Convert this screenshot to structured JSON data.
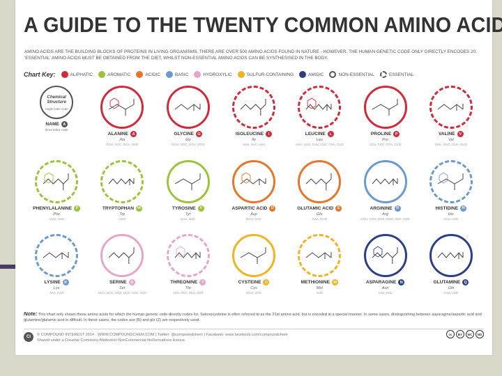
{
  "header": {
    "title": "A GUIDE TO THE TWENTY COMMON AMINO ACIDS",
    "intro": "AMINO ACIDS ARE THE BUILDING BLOCKS OF PROTEINS IN LIVING ORGANISMS. THERE ARE OVER 500 AMINO ACIDS FOUND IN NATURE - HOWEVER, THE HUMAN GENETIC CODE ONLY DIRECTLY ENCODES 20. 'ESSENTIAL' AMINO ACIDS MUST BE OBTAINED FROM THE DIET, WHILST NON-ESSENTIAL AMINO ACIDS CAN BE SYNTHESISED IN THE BODY."
  },
  "chart_key": {
    "label": "Chart Key:",
    "items": [
      {
        "label": "ALIPHATIC",
        "color": "#d12a3a"
      },
      {
        "label": "AROMATIC",
        "color": "#9bc43c"
      },
      {
        "label": "ACIDIC",
        "color": "#e8752a"
      },
      {
        "label": "BASIC",
        "color": "#6b9ad1"
      },
      {
        "label": "HYDROXYLIC",
        "color": "#e7a5c8"
      },
      {
        "label": "SULFUR-CONTAINING",
        "color": "#f0b323"
      },
      {
        "label": "AMIDIC",
        "color": "#2c3e86"
      },
      {
        "label": "NON-ESSENTIAL",
        "color": "#555555"
      },
      {
        "label": "ESSENTIAL",
        "color": "#555555"
      }
    ]
  },
  "legend": {
    "chem": "Chemical Structure",
    "slc": "single letter code",
    "name": "NAME",
    "badge": "A",
    "three_letter": "three letter code"
  },
  "amino_acids": [
    {
      "name": "ALANINE",
      "letter": "A",
      "abbr": "Ala",
      "codons": "GCU, GCC, GCA, GCG",
      "color": "#d12a3a"
    },
    {
      "name": "GLYCINE",
      "letter": "G",
      "abbr": "Gly",
      "codons": "GGU, GGC, GGA, GGG",
      "color": "#d12a3a"
    },
    {
      "name": "ISOLEUCINE",
      "letter": "I",
      "abbr": "Ile",
      "codons": "AUU, AUC, AUA",
      "color": "#d12a3a"
    },
    {
      "name": "LEUCINE",
      "letter": "L",
      "abbr": "Leu",
      "codons": "UUA, UUG, CUU, CUC, CUA, CUG",
      "color": "#d12a3a"
    },
    {
      "name": "PROLINE",
      "letter": "P",
      "abbr": "Pro",
      "codons": "CCU, CCC, CCA, CCG",
      "color": "#d12a3a"
    },
    {
      "name": "VALINE",
      "letter": "V",
      "abbr": "Val",
      "codons": "GUU, GUC, GUA, GUG",
      "color": "#d12a3a"
    },
    {
      "name": "PHENYLALANINE",
      "letter": "F",
      "abbr": "Phe",
      "codons": "UUU, UUC",
      "color": "#9bc43c"
    },
    {
      "name": "TRYPTOPHAN",
      "letter": "W",
      "abbr": "Trp",
      "codons": "UGG",
      "color": "#9bc43c"
    },
    {
      "name": "TYROSINE",
      "letter": "Y",
      "abbr": "Tyr",
      "codons": "UAU, UAC",
      "color": "#9bc43c"
    },
    {
      "name": "ASPARTIC ACID",
      "letter": "D",
      "abbr": "Asp",
      "codons": "GAU, GAC",
      "color": "#e8752a"
    },
    {
      "name": "GLUTAMIC ACID",
      "letter": "E",
      "abbr": "Glu",
      "codons": "GAA, GAG",
      "color": "#e8752a"
    },
    {
      "name": "ARGININE",
      "letter": "R",
      "abbr": "Arg",
      "codons": "CGU, CGC, CGA, CGG, AGA, AGG",
      "color": "#6b9ad1"
    },
    {
      "name": "HISTIDINE",
      "letter": "H",
      "abbr": "His",
      "codons": "CAU, CAC",
      "color": "#6b9ad1"
    },
    {
      "name": "LYSINE",
      "letter": "K",
      "abbr": "Lys",
      "codons": "AAA, AAG",
      "color": "#6b9ad1"
    },
    {
      "name": "SERINE",
      "letter": "S",
      "abbr": "Ser",
      "codons": "UCU, UCC, UCA, UCG, AGU, AGC",
      "color": "#e7a5c8"
    },
    {
      "name": "THREONINE",
      "letter": "T",
      "abbr": "Thr",
      "codons": "ACU, ACC, ACA, ACG",
      "color": "#e7a5c8"
    },
    {
      "name": "CYSTEINE",
      "letter": "C",
      "abbr": "Cys",
      "codons": "UGU, UGC",
      "color": "#f0b323"
    },
    {
      "name": "METHIONINE",
      "letter": "M",
      "abbr": "Met",
      "codons": "AUG",
      "color": "#f0b323"
    },
    {
      "name": "ASPARAGINE",
      "letter": "N",
      "abbr": "Asn",
      "codons": "AAU, AAC",
      "color": "#2c3e86"
    },
    {
      "name": "GLUTAMINE",
      "letter": "Q",
      "abbr": "Gln",
      "codons": "CAA, CAG",
      "color": "#2c3e86"
    }
  ],
  "note": {
    "label": "Note:",
    "text": "This chart only shows those amino acids for which the human genetic code directly codes for. Selenocysteine is often referred to as the 21st amino acid, but is encoded in a special manner. In some cases, distinguishing between asparagine/aspartic acid and glutamine/glutamic acid is difficult. In these cases, the codes asx (B) and glx (Z) are respectively used."
  },
  "footer": {
    "logo": "Ci",
    "line1": "© COMPOUND INTEREST 2014 · WWW.COMPOUNDCHEM.COM | Twitter: @compoundchem | Facebook: www.facebook.com/compoundchem",
    "line2": "Shared under a Creative Commons Attribution-NonCommercial-NoDerivatives licence.",
    "cc_icons": [
      "cc",
      "BY",
      "NC",
      "ND"
    ]
  }
}
